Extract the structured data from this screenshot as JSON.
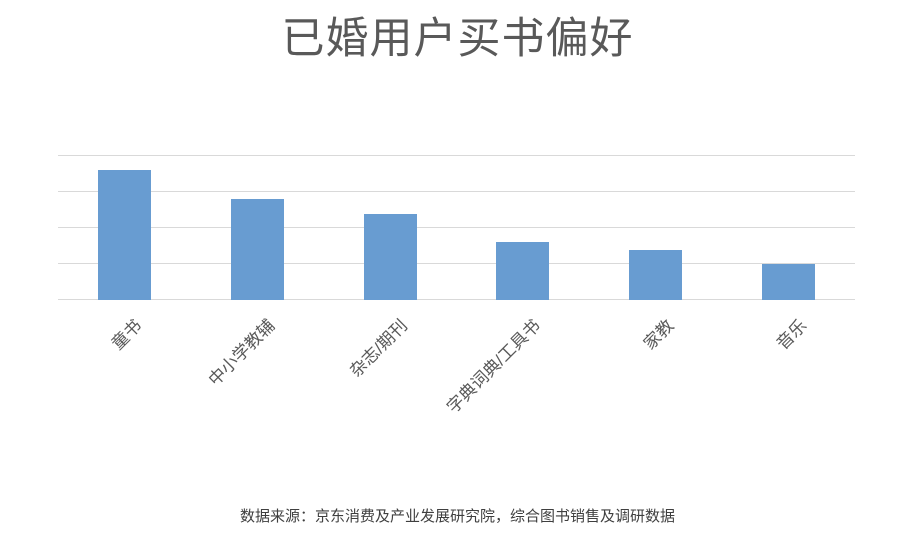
{
  "chart_data": {
    "type": "bar",
    "title": "已婚用户买书偏好",
    "categories": [
      "童书",
      "中小学教辅",
      "杂志/期刊",
      "字典词典/工具书",
      "家教",
      "音乐"
    ],
    "values": [
      36,
      28,
      24,
      16,
      14,
      10
    ],
    "xlabel": "",
    "ylabel": "",
    "ylim": [
      0,
      40
    ],
    "gridline_step": 10,
    "grid": true,
    "legend": false,
    "y_axis_labels_visible": false,
    "x_label_rotation_deg": 45,
    "source_note": "数据来源：京东消费及产业发展研究院，综合图书销售及调研数据"
  },
  "colors": {
    "background": "#ffffff",
    "bar": "#689CD1",
    "gridline": "#d9d9d9",
    "title_text": "#595959",
    "axis_label_text": "#595959",
    "source_note_text": "#3f3f3f"
  }
}
